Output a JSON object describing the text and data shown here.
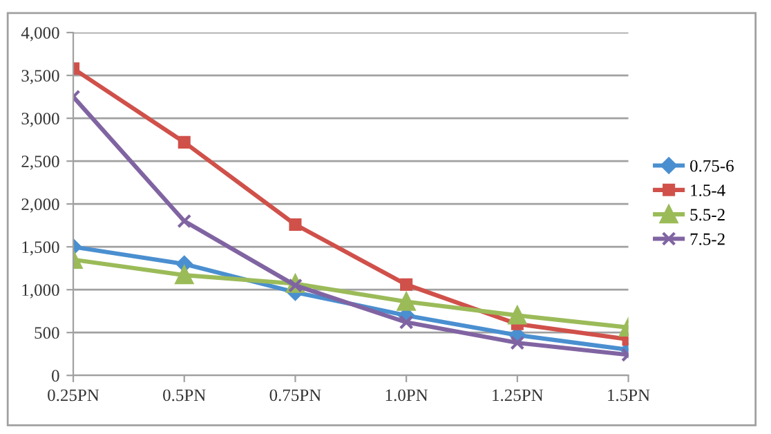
{
  "chart_data": {
    "type": "line",
    "categories": [
      "0.25PN",
      "0.5PN",
      "0.75PN",
      "1.0PN",
      "1.25PN",
      "1.5PN"
    ],
    "series": [
      {
        "name": "0.75-6",
        "color": "#4a8fd0",
        "marker": "diamond",
        "values": [
          1500,
          1300,
          970,
          700,
          470,
          300
        ]
      },
      {
        "name": "1.5-4",
        "color": "#d0504a",
        "marker": "square",
        "values": [
          3580,
          2720,
          1760,
          1060,
          600,
          420
        ]
      },
      {
        "name": "5.5-2",
        "color": "#9bbb59",
        "marker": "triangle",
        "values": [
          1350,
          1170,
          1070,
          860,
          700,
          560
        ]
      },
      {
        "name": "7.5-2",
        "color": "#8064a2",
        "marker": "cross",
        "values": [
          3250,
          1800,
          1050,
          620,
          380,
          240
        ]
      }
    ],
    "ylim": [
      0,
      4000
    ],
    "yticks": [
      {
        "value": 0,
        "label": "0"
      },
      {
        "value": 500,
        "label": "500"
      },
      {
        "value": 1000,
        "label": "1,000"
      },
      {
        "value": 1500,
        "label": "1,500"
      },
      {
        "value": 2000,
        "label": "2,000"
      },
      {
        "value": 2500,
        "label": "2,500"
      },
      {
        "value": 3000,
        "label": "3,000"
      },
      {
        "value": 3500,
        "label": "3,500"
      },
      {
        "value": 4000,
        "label": "4,000"
      }
    ],
    "grid": "y",
    "legend": "right",
    "line_style": "solid"
  }
}
